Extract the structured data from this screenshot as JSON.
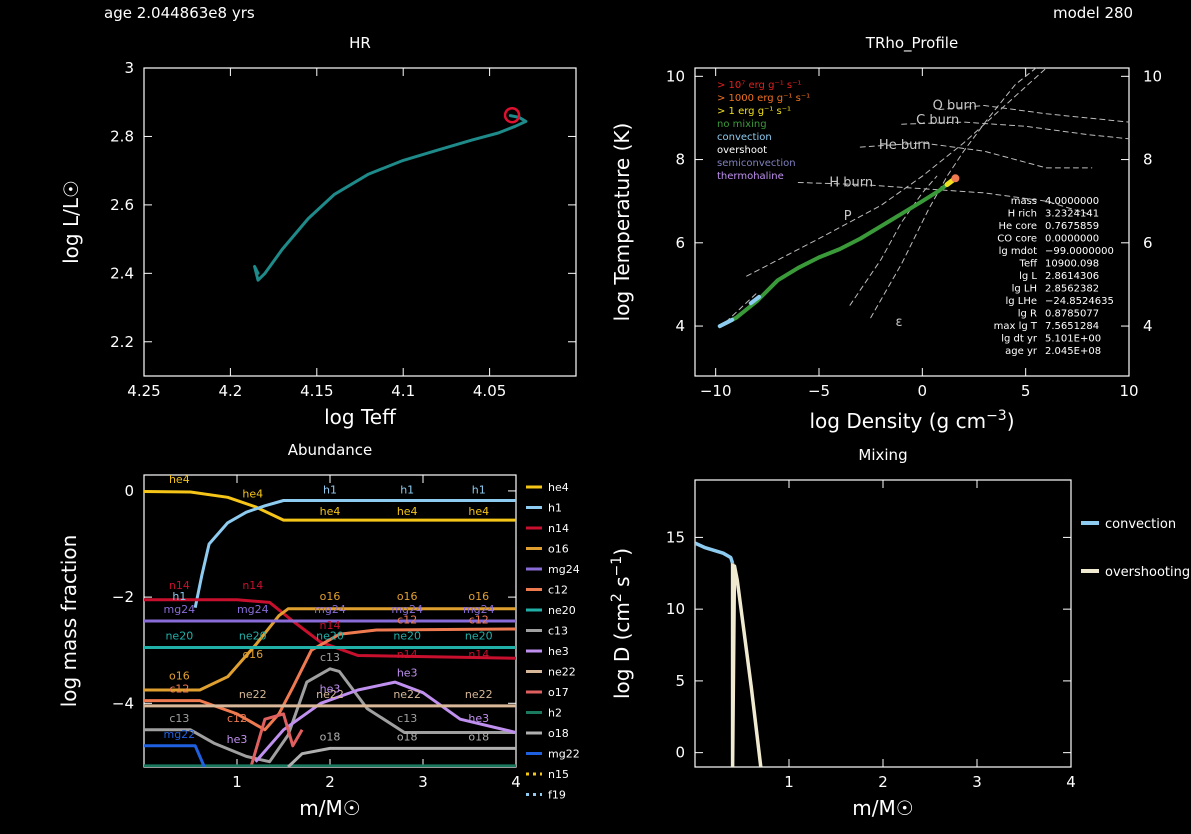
{
  "header": {
    "age": "age 2.044863e8 yrs",
    "model": "model 280"
  },
  "colors": {
    "h1": "#8ecbf0",
    "he4": "#f5c518",
    "n14": "#c8102e",
    "o16": "#e0a030",
    "mg24": "#8a6cd8",
    "c12": "#f07a50",
    "ne20": "#20b0a8",
    "c13": "#a0a0a0",
    "he3": "#c090f0",
    "ne22": "#d8b898",
    "o17": "#e06060",
    "h2": "#1a7a60",
    "o18": "#b0b0b0",
    "mg22": "#1e60e0",
    "n15": "#f5c518",
    "f19": "#8ecbf0",
    "track": "#1f8a8a",
    "profile": "#3a9a3a",
    "marker": "#e01030",
    "overshooting": "#f0ead0"
  },
  "chart_data": [
    {
      "type": "line",
      "title": "HR",
      "xlabel": "log Teff",
      "ylabel": "log L/L☉",
      "xlim": [
        4.25,
        4.0
      ],
      "ylim": [
        2.1,
        3.0
      ],
      "xticks": [
        "4.25",
        "4.2",
        "4.15",
        "4.1",
        "4.05"
      ],
      "xtick_values": [
        4.25,
        4.2,
        4.15,
        4.1,
        4.05
      ],
      "yticks": [
        "2.2",
        "2.4",
        "2.6",
        "2.8",
        "3"
      ],
      "ytick_values": [
        2.2,
        2.4,
        2.6,
        2.8,
        3.0
      ],
      "series": [
        {
          "x": [
            4.184,
            4.186,
            4.184,
            4.18,
            4.17,
            4.155,
            4.14,
            4.12,
            4.1,
            4.08,
            4.06,
            4.045,
            4.035,
            4.029,
            4.033,
            4.038
          ],
          "y": [
            2.4,
            2.42,
            2.38,
            2.4,
            2.47,
            2.56,
            2.63,
            2.69,
            2.73,
            2.76,
            2.79,
            2.81,
            2.83,
            2.844,
            2.856,
            2.861
          ]
        }
      ],
      "marker": {
        "x": 4.037,
        "y": 2.862
      }
    },
    {
      "type": "line",
      "title": "TRho_Profile",
      "xlabel": "log Density (g cm",
      "xlabel_sup": "−3",
      "xlabel_tail": ")",
      "ylabel": "log Temperature (K)",
      "xlim": [
        -11,
        10
      ],
      "ylim": [
        2.8,
        10.2
      ],
      "xticks": [
        "−10",
        "−5",
        "0",
        "5",
        "10"
      ],
      "xtick_values": [
        -10,
        -5,
        0,
        5,
        10
      ],
      "yticks": [
        "4",
        "6",
        "8",
        "10"
      ],
      "ytick_values": [
        4,
        6,
        8,
        10
      ],
      "legend": [
        {
          "text": "> 10⁷ erg g⁻¹ s⁻¹",
          "color": "#e02020"
        },
        {
          "text": "> 1000 erg g⁻¹ s⁻¹",
          "color": "#f07020"
        },
        {
          "text": "> 1 erg g⁻¹ s⁻¹",
          "color": "#f0e020"
        },
        {
          "text": "no mixing",
          "color": "#3a9a3a"
        },
        {
          "text": "convection",
          "color": "#8ecbf0"
        },
        {
          "text": "overshoot",
          "color": "#ffffff"
        },
        {
          "text": "semiconvection",
          "color": "#8080c0"
        },
        {
          "text": "thermohaline",
          "color": "#c090f0"
        }
      ],
      "annotations": [
        {
          "text": "O burn",
          "x": 0.5,
          "y": 9.2
        },
        {
          "text": "C burn",
          "x": -0.3,
          "y": 8.85
        },
        {
          "text": "He burn",
          "x": -2.1,
          "y": 8.25
        },
        {
          "text": "H burn",
          "x": -4.5,
          "y": 7.35
        },
        {
          "text": "P",
          "x": -3.8,
          "y": 6.55
        },
        {
          "text": "ε",
          "x": -1.3,
          "y": 4.0
        }
      ],
      "info": [
        [
          "mass",
          "4.0000000"
        ],
        [
          "H rich",
          "3.2324141"
        ],
        [
          "He core",
          "0.7675859"
        ],
        [
          "CO core",
          "0.0000000"
        ],
        [
          "lg mdot",
          "−99.0000000"
        ],
        [
          "Teff",
          "10900.098"
        ],
        [
          "lg L",
          "2.8614306"
        ],
        [
          "lg LH",
          "2.8562382"
        ],
        [
          "lg LHe",
          "−24.8524635"
        ],
        [
          "lg R",
          "0.8785077"
        ],
        [
          "max lg T",
          "7.5651284"
        ],
        [
          "lg dt yr",
          "5.101E+00"
        ],
        [
          "age yr",
          "2.045E+08"
        ]
      ],
      "profile": {
        "x": [
          -9.8,
          -9.0,
          -8.0,
          -7.0,
          -6.0,
          -5.0,
          -4.0,
          -3.0,
          -2.0,
          -1.0,
          0.0,
          0.8,
          1.2,
          1.6
        ],
        "y": [
          4.0,
          4.2,
          4.6,
          5.1,
          5.4,
          5.65,
          5.85,
          6.1,
          6.4,
          6.7,
          7.0,
          7.25,
          7.4,
          7.55
        ]
      }
    },
    {
      "type": "line",
      "title": "Abundance",
      "xlabel": "m/M☉",
      "ylabel": "log mass fraction",
      "xlim": [
        0,
        4
      ],
      "ylim": [
        -5.2,
        0.3
      ],
      "xticks": [
        "1",
        "2",
        "3",
        "4"
      ],
      "xtick_values": [
        1,
        2,
        3,
        4
      ],
      "yticks": [
        "−4",
        "−2",
        "0"
      ],
      "ytick_values": [
        -4,
        -2,
        0
      ],
      "series": [
        {
          "name": "he4",
          "x": [
            0,
            0.5,
            0.9,
            1.2,
            1.5,
            4
          ],
          "y": [
            -0.01,
            -0.02,
            -0.12,
            -0.3,
            -0.55,
            -0.55
          ]
        },
        {
          "name": "h1",
          "x": [
            0.55,
            0.62,
            0.7,
            0.9,
            1.1,
            1.3,
            1.5,
            4
          ],
          "y": [
            -2.2,
            -1.6,
            -1.0,
            -0.6,
            -0.4,
            -0.28,
            -0.18,
            -0.18
          ]
        },
        {
          "name": "n14",
          "x": [
            0,
            0.5,
            1.0,
            1.35,
            1.6,
            1.9,
            2.3,
            4
          ],
          "y": [
            -2.05,
            -2.05,
            -2.05,
            -2.1,
            -2.45,
            -2.85,
            -3.1,
            -3.15
          ]
        },
        {
          "name": "o16",
          "x": [
            0,
            0.6,
            0.9,
            1.2,
            1.45,
            1.55,
            4
          ],
          "y": [
            -3.75,
            -3.75,
            -3.5,
            -2.9,
            -2.35,
            -2.22,
            -2.22
          ]
        },
        {
          "name": "mg24",
          "x": [
            0,
            4
          ],
          "y": [
            -2.45,
            -2.45
          ]
        },
        {
          "name": "c12",
          "x": [
            0,
            0.6,
            1.0,
            1.3,
            1.45,
            1.6,
            1.8,
            2.1,
            2.5,
            4
          ],
          "y": [
            -3.95,
            -3.95,
            -4.2,
            -4.5,
            -4.2,
            -3.7,
            -3.0,
            -2.7,
            -2.62,
            -2.6
          ]
        },
        {
          "name": "ne20",
          "x": [
            0,
            4
          ],
          "y": [
            -2.95,
            -2.95
          ]
        },
        {
          "name": "c13",
          "x": [
            0,
            0.5,
            0.75,
            1.1,
            1.35,
            1.55,
            1.75,
            2.0,
            2.1,
            2.4,
            2.8,
            4
          ],
          "y": [
            -4.5,
            -4.5,
            -4.75,
            -5.0,
            -5.1,
            -4.6,
            -3.6,
            -3.35,
            -3.4,
            -4.1,
            -4.55,
            -4.55
          ]
        },
        {
          "name": "he3",
          "x": [
            1.2,
            1.5,
            1.9,
            2.3,
            2.7,
            3.0,
            3.4,
            4
          ],
          "y": [
            -5.1,
            -4.5,
            -4.0,
            -3.75,
            -3.6,
            -3.8,
            -4.3,
            -4.55
          ]
        },
        {
          "name": "ne22",
          "x": [
            0,
            4
          ],
          "y": [
            -4.05,
            -4.05
          ]
        },
        {
          "name": "o17",
          "x": [
            1.15,
            1.3,
            1.5,
            1.6,
            1.7
          ],
          "y": [
            -5.2,
            -4.3,
            -4.2,
            -4.8,
            -4.5
          ]
        },
        {
          "name": "h2",
          "x": [
            0,
            4
          ],
          "y": [
            -5.18,
            -5.18
          ]
        },
        {
          "name": "o18",
          "x": [
            1.55,
            1.7,
            2.0,
            2.5,
            4
          ],
          "y": [
            -5.2,
            -4.95,
            -4.85,
            -4.85,
            -4.85
          ]
        },
        {
          "name": "mg22",
          "x": [
            0,
            0.55,
            0.65
          ],
          "y": [
            -4.8,
            -4.8,
            -5.2
          ]
        },
        {
          "name": "n15",
          "x": [],
          "y": []
        },
        {
          "name": "f19",
          "x": [],
          "y": []
        }
      ],
      "curve_labels": [
        {
          "text": "he4",
          "x": 0.38,
          "y": 0.15,
          "c": "he4"
        },
        {
          "text": "he4",
          "x": 1.17,
          "y": -0.12,
          "c": "he4"
        },
        {
          "text": "h1",
          "x": 2.0,
          "y": -0.05,
          "c": "h1"
        },
        {
          "text": "h1",
          "x": 2.83,
          "y": -0.05,
          "c": "h1"
        },
        {
          "text": "h1",
          "x": 3.6,
          "y": -0.05,
          "c": "h1"
        },
        {
          "text": "he4",
          "x": 2.0,
          "y": -0.45,
          "c": "he4"
        },
        {
          "text": "he4",
          "x": 2.83,
          "y": -0.45,
          "c": "he4"
        },
        {
          "text": "he4",
          "x": 3.6,
          "y": -0.45,
          "c": "he4"
        },
        {
          "text": "n14",
          "x": 0.38,
          "y": -1.85,
          "c": "n14"
        },
        {
          "text": "n14",
          "x": 1.17,
          "y": -1.85,
          "c": "n14"
        },
        {
          "text": "h1",
          "x": 0.38,
          "y": -2.05,
          "c": "h1"
        },
        {
          "text": "o16",
          "x": 2.0,
          "y": -2.05,
          "c": "o16"
        },
        {
          "text": "o16",
          "x": 2.83,
          "y": -2.05,
          "c": "o16"
        },
        {
          "text": "o16",
          "x": 3.6,
          "y": -2.05,
          "c": "o16"
        },
        {
          "text": "mg24",
          "x": 0.38,
          "y": -2.3,
          "c": "mg24"
        },
        {
          "text": "mg24",
          "x": 1.17,
          "y": -2.3,
          "c": "mg24"
        },
        {
          "text": "mg24",
          "x": 2.0,
          "y": -2.3,
          "c": "mg24"
        },
        {
          "text": "mg24",
          "x": 2.83,
          "y": -2.3,
          "c": "mg24"
        },
        {
          "text": "mg24",
          "x": 3.6,
          "y": -2.3,
          "c": "mg24"
        },
        {
          "text": "c12",
          "x": 2.83,
          "y": -2.5,
          "c": "c12"
        },
        {
          "text": "c12",
          "x": 3.6,
          "y": -2.5,
          "c": "c12"
        },
        {
          "text": "ne20",
          "x": 0.38,
          "y": -2.8,
          "c": "ne20"
        },
        {
          "text": "ne20",
          "x": 1.17,
          "y": -2.8,
          "c": "ne20"
        },
        {
          "text": "ne20",
          "x": 2.0,
          "y": -2.8,
          "c": "ne20"
        },
        {
          "text": "ne20",
          "x": 2.83,
          "y": -2.8,
          "c": "ne20"
        },
        {
          "text": "ne20",
          "x": 3.6,
          "y": -2.8,
          "c": "ne20"
        },
        {
          "text": "n14",
          "x": 2.0,
          "y": -2.6,
          "c": "n14"
        },
        {
          "text": "n14",
          "x": 2.83,
          "y": -3.15,
          "c": "n14"
        },
        {
          "text": "n14",
          "x": 3.6,
          "y": -3.15,
          "c": "n14"
        },
        {
          "text": "o16",
          "x": 1.17,
          "y": -3.15,
          "c": "o16"
        },
        {
          "text": "o16",
          "x": 0.38,
          "y": -3.55,
          "c": "o16"
        },
        {
          "text": "c12",
          "x": 0.38,
          "y": -3.8,
          "c": "c12"
        },
        {
          "text": "ne22",
          "x": 1.17,
          "y": -3.9,
          "c": "ne22"
        },
        {
          "text": "ne22",
          "x": 2.0,
          "y": -3.9,
          "c": "ne22"
        },
        {
          "text": "ne22",
          "x": 2.83,
          "y": -3.9,
          "c": "ne22"
        },
        {
          "text": "ne22",
          "x": 3.6,
          "y": -3.9,
          "c": "ne22"
        },
        {
          "text": "c13",
          "x": 2.0,
          "y": -3.2,
          "c": "c13"
        },
        {
          "text": "he3",
          "x": 2.0,
          "y": -3.8,
          "c": "he3"
        },
        {
          "text": "he3",
          "x": 2.83,
          "y": -3.5,
          "c": "he3"
        },
        {
          "text": "he3",
          "x": 3.6,
          "y": -4.35,
          "c": "he3"
        },
        {
          "text": "c13",
          "x": 0.38,
          "y": -4.35,
          "c": "c13"
        },
        {
          "text": "c12",
          "x": 1.0,
          "y": -4.35,
          "c": "c12"
        },
        {
          "text": "c13",
          "x": 2.83,
          "y": -4.35,
          "c": "c13"
        },
        {
          "text": "mg22",
          "x": 0.38,
          "y": -4.65,
          "c": "mg22"
        },
        {
          "text": "he3",
          "x": 1.0,
          "y": -4.75,
          "c": "he3"
        },
        {
          "text": "o18",
          "x": 2.0,
          "y": -4.7,
          "c": "o18"
        },
        {
          "text": "o18",
          "x": 2.83,
          "y": -4.7,
          "c": "o18"
        },
        {
          "text": "o18",
          "x": 3.6,
          "y": -4.7,
          "c": "o18"
        }
      ],
      "legend": [
        "he4",
        "h1",
        "n14",
        "o16",
        "mg24",
        "c12",
        "ne20",
        "c13",
        "he3",
        "ne22",
        "o17",
        "h2",
        "o18",
        "mg22",
        "n15",
        "f19"
      ],
      "legend_dotted": [
        "n15",
        "f19"
      ]
    },
    {
      "type": "line",
      "title": "Mixing",
      "xlabel": "m/M☉",
      "ylabel": "log D (cm",
      "ylabel_sup": "2",
      "ylabel_mid": " s",
      "ylabel_sup2": "−1",
      "ylabel_tail": ")",
      "xlim": [
        0,
        4
      ],
      "ylim": [
        -1,
        19
      ],
      "xticks": [
        "1",
        "2",
        "3",
        "4"
      ],
      "xtick_values": [
        1,
        2,
        3,
        4
      ],
      "yticks": [
        "0",
        "5",
        "10",
        "15"
      ],
      "ytick_values": [
        0,
        5,
        10,
        15
      ],
      "series": [
        {
          "name": "convection",
          "x": [
            0,
            0.1,
            0.2,
            0.3,
            0.38,
            0.4
          ],
          "y": [
            14.6,
            14.3,
            14.1,
            13.9,
            13.6,
            13.2
          ]
        },
        {
          "name": "overshooting",
          "x": [
            0.4,
            0.4,
            0.42,
            0.45,
            0.5,
            0.6,
            0.7
          ],
          "y": [
            13.2,
            -1,
            13.0,
            12.0,
            9.5,
            4.5,
            -1
          ]
        }
      ],
      "legend": [
        "convection",
        "overshooting"
      ]
    }
  ]
}
